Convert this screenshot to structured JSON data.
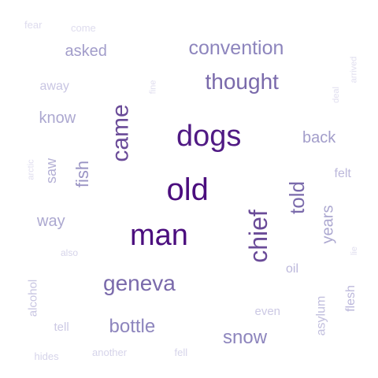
{
  "words": [
    {
      "text": "old",
      "weight": 1.0,
      "color": "#4b0e7e",
      "rotated": false
    },
    {
      "text": "man",
      "weight": 0.98,
      "color": "#4b0e7e",
      "rotated": false
    },
    {
      "text": "dogs",
      "weight": 0.9,
      "color": "#501a84",
      "rotated": false
    },
    {
      "text": "chief",
      "weight": 0.72,
      "color": "#6a4b98",
      "rotated": true
    },
    {
      "text": "came",
      "weight": 0.68,
      "color": "#6a4b98",
      "rotated": true
    },
    {
      "text": "geneva",
      "weight": 0.62,
      "color": "#7a6aab",
      "rotated": false
    },
    {
      "text": "thought",
      "weight": 0.6,
      "color": "#7a6aab",
      "rotated": false
    },
    {
      "text": "told",
      "weight": 0.55,
      "color": "#7a6aab",
      "rotated": true
    },
    {
      "text": "convention",
      "weight": 0.52,
      "color": "#8d85bd",
      "rotated": false
    },
    {
      "text": "bottle",
      "weight": 0.5,
      "color": "#8d85bd",
      "rotated": false
    },
    {
      "text": "snow",
      "weight": 0.5,
      "color": "#8d85bd",
      "rotated": false
    },
    {
      "text": "fish",
      "weight": 0.45,
      "color": "#9a94c4",
      "rotated": true
    },
    {
      "text": "asked",
      "weight": 0.42,
      "color": "#a29dca",
      "rotated": false
    },
    {
      "text": "back",
      "weight": 0.42,
      "color": "#a29dca",
      "rotated": false
    },
    {
      "text": "years",
      "weight": 0.4,
      "color": "#aca8d0",
      "rotated": true
    },
    {
      "text": "know",
      "weight": 0.4,
      "color": "#aca8d0",
      "rotated": false
    },
    {
      "text": "way",
      "weight": 0.4,
      "color": "#aca8d0",
      "rotated": false
    },
    {
      "text": "saw",
      "weight": 0.36,
      "color": "#b4b0d5",
      "rotated": true
    },
    {
      "text": "felt",
      "weight": 0.32,
      "color": "#bcb8db",
      "rotated": false
    },
    {
      "text": "oil",
      "weight": 0.32,
      "color": "#bcb8db",
      "rotated": false
    },
    {
      "text": "flesh",
      "weight": 0.32,
      "color": "#bcb8db",
      "rotated": true
    },
    {
      "text": "asylum",
      "weight": 0.3,
      "color": "#c2bfde",
      "rotated": true
    },
    {
      "text": "away",
      "weight": 0.3,
      "color": "#c8c5e2",
      "rotated": false
    },
    {
      "text": "alcohol",
      "weight": 0.28,
      "color": "#c8c5e2",
      "rotated": true
    },
    {
      "text": "even",
      "weight": 0.28,
      "color": "#ccc9e4",
      "rotated": false
    },
    {
      "text": "tell",
      "weight": 0.28,
      "color": "#ccc9e4",
      "rotated": false
    },
    {
      "text": "also",
      "weight": 0.22,
      "color": "#d6d4ea",
      "rotated": false
    },
    {
      "text": "hides",
      "weight": 0.22,
      "color": "#d6d4ea",
      "rotated": false
    },
    {
      "text": "another",
      "weight": 0.22,
      "color": "#d6d4ea",
      "rotated": false
    },
    {
      "text": "fell",
      "weight": 0.22,
      "color": "#d6d4ea",
      "rotated": false
    },
    {
      "text": "fear",
      "weight": 0.2,
      "color": "#dedcee",
      "rotated": false
    },
    {
      "text": "come",
      "weight": 0.2,
      "color": "#dedcee",
      "rotated": false
    },
    {
      "text": "arctic",
      "weight": 0.18,
      "color": "#e0deef",
      "rotated": true
    },
    {
      "text": "fine",
      "weight": 0.18,
      "color": "#e0deef",
      "rotated": true
    },
    {
      "text": "arrived",
      "weight": 0.18,
      "color": "#e0deef",
      "rotated": true
    },
    {
      "text": "deal",
      "weight": 0.18,
      "color": "#e0deef",
      "rotated": true
    },
    {
      "text": "lie",
      "weight": 0.18,
      "color": "#e0deef",
      "rotated": true
    }
  ]
}
